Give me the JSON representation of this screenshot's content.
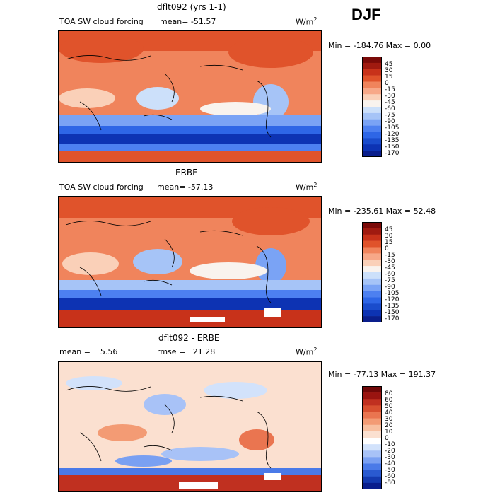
{
  "season": "DJF",
  "colors": {
    "map_colors": [
      "#0a1e8c",
      "#0d33b3",
      "#1a4ccc",
      "#2e66e6",
      "#4d80f0",
      "#7aa3f5",
      "#a6c4f7",
      "#cce0fa",
      "#f9f3ee",
      "#fad0b8",
      "#f7a888",
      "#f0845c",
      "#e0532b",
      "#c8321a",
      "#a01a10",
      "#7a0a08"
    ],
    "diff_colors": [
      "#0a1e8c",
      "#143aaf",
      "#2a5ad0",
      "#4a7ae8",
      "#7aa0f2",
      "#a8c2f7",
      "#d2e2fb",
      "#ffffff",
      "#fbe0d0",
      "#f8c0a0",
      "#f39b74",
      "#ea7550",
      "#d85030",
      "#c03020",
      "#9a1410",
      "#700808"
    ]
  },
  "panels": [
    {
      "title": "dflt092 (yrs 1-1)",
      "subtitle": "TOA SW cloud forcing",
      "stat1": "mean= -51.57",
      "stat2": "",
      "unit": "W/m",
      "unit_sup": "2",
      "minmax": "Min = -184.76 Max =    0.00",
      "levels": [
        "45",
        "30",
        "15",
        "0",
        "-15",
        "-30",
        "-45",
        "-60",
        "-75",
        "-90",
        "-105",
        "-120",
        "-135",
        "-150",
        "-170"
      ]
    },
    {
      "title": "ERBE",
      "subtitle": "TOA SW cloud forcing",
      "stat1": "mean= -57.13",
      "stat2": "",
      "unit": "W/m",
      "unit_sup": "2",
      "minmax": "Min = -235.61 Max =  52.48",
      "levels": [
        "45",
        "30",
        "15",
        "0",
        "-15",
        "-30",
        "-45",
        "-60",
        "-75",
        "-90",
        "-105",
        "-120",
        "-135",
        "-150",
        "-170"
      ]
    },
    {
      "title": "dflt092 - ERBE",
      "subtitle": "",
      "stat1": "mean =    5.56",
      "stat2": "rmse =   21.28",
      "unit": "W/m",
      "unit_sup": "2",
      "minmax": "Min = -77.13 Max = 191.37",
      "levels": [
        "80",
        "60",
        "50",
        "40",
        "30",
        "20",
        "10",
        "0",
        "-10",
        "-20",
        "-30",
        "-40",
        "-50",
        "-60",
        "-80"
      ]
    }
  ]
}
